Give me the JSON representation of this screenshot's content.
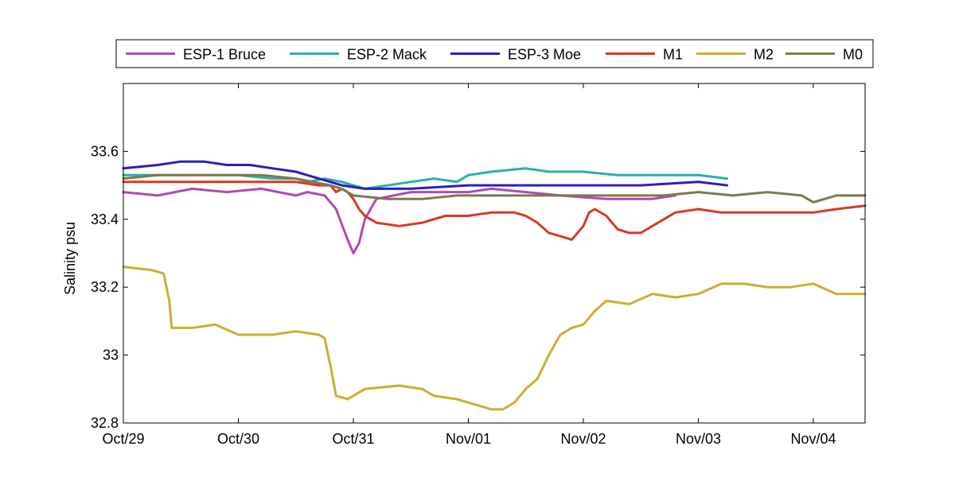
{
  "chart_data": {
    "type": "line",
    "xlabel": "",
    "ylabel": "Salinity psu",
    "xlim": [
      0,
      6.45
    ],
    "ylim": [
      32.8,
      33.8
    ],
    "x_tick_positions": [
      0,
      1,
      2,
      3,
      4,
      5,
      6
    ],
    "x_tick_labels": [
      "Oct/29",
      "Oct/30",
      "Oct/31",
      "Nov/01",
      "Nov/02",
      "Nov/03",
      "Nov/04"
    ],
    "y_tick_values": [
      32.8,
      33.0,
      33.2,
      33.4,
      33.6
    ],
    "y_tick_labels": [
      "32.8",
      "33",
      "33.2",
      "33.4",
      "33.6"
    ],
    "x_units": "days since Oct/29",
    "grid": false,
    "legend_position": "top",
    "series": [
      {
        "name": "ESP-1 Bruce",
        "color": "#b04ab6",
        "points": [
          [
            0,
            33.48
          ],
          [
            0.3,
            33.47
          ],
          [
            0.6,
            33.49
          ],
          [
            0.9,
            33.48
          ],
          [
            1.2,
            33.49
          ],
          [
            1.5,
            33.47
          ],
          [
            1.6,
            33.48
          ],
          [
            1.75,
            33.47
          ],
          [
            1.85,
            33.43
          ],
          [
            1.95,
            33.34
          ],
          [
            2.0,
            33.3
          ],
          [
            2.05,
            33.33
          ],
          [
            2.1,
            33.4
          ],
          [
            2.2,
            33.46
          ],
          [
            2.35,
            33.47
          ],
          [
            2.5,
            33.48
          ],
          [
            2.8,
            33.48
          ],
          [
            3.0,
            33.48
          ],
          [
            3.2,
            33.49
          ],
          [
            3.5,
            33.48
          ],
          [
            3.8,
            33.47
          ],
          [
            4.2,
            33.46
          ],
          [
            4.6,
            33.46
          ],
          [
            4.8,
            33.47
          ]
        ]
      },
      {
        "name": "ESP-2 Mack",
        "color": "#29b0a8",
        "points": [
          [
            0,
            33.53
          ],
          [
            0.5,
            33.53
          ],
          [
            1.0,
            33.53
          ],
          [
            1.3,
            33.52
          ],
          [
            1.5,
            33.52
          ],
          [
            1.6,
            33.51
          ],
          [
            1.75,
            33.52
          ],
          [
            1.9,
            33.51
          ],
          [
            2.1,
            33.49
          ],
          [
            2.3,
            33.5
          ],
          [
            2.5,
            33.51
          ],
          [
            2.7,
            33.52
          ],
          [
            2.9,
            33.51
          ],
          [
            3.0,
            33.53
          ],
          [
            3.2,
            33.54
          ],
          [
            3.5,
            33.55
          ],
          [
            3.7,
            33.54
          ],
          [
            4.0,
            33.54
          ],
          [
            4.3,
            33.53
          ],
          [
            4.6,
            33.53
          ],
          [
            5.0,
            33.53
          ],
          [
            5.25,
            33.52
          ]
        ]
      },
      {
        "name": "ESP-3 Moe",
        "color": "#2b1fbf",
        "points": [
          [
            0,
            33.55
          ],
          [
            0.3,
            33.56
          ],
          [
            0.5,
            33.57
          ],
          [
            0.7,
            33.57
          ],
          [
            0.9,
            33.56
          ],
          [
            1.1,
            33.56
          ],
          [
            1.3,
            33.55
          ],
          [
            1.5,
            33.54
          ],
          [
            1.7,
            33.52
          ],
          [
            1.9,
            33.5
          ],
          [
            2.1,
            33.49
          ],
          [
            2.5,
            33.49
          ],
          [
            3.0,
            33.5
          ],
          [
            3.5,
            33.5
          ],
          [
            4.0,
            33.5
          ],
          [
            4.5,
            33.5
          ],
          [
            5.0,
            33.51
          ],
          [
            5.25,
            33.5
          ]
        ]
      },
      {
        "name": "M1",
        "color": "#d83a20",
        "points": [
          [
            0,
            33.51
          ],
          [
            0.5,
            33.51
          ],
          [
            1.0,
            33.51
          ],
          [
            1.5,
            33.51
          ],
          [
            1.7,
            33.5
          ],
          [
            1.8,
            33.5
          ],
          [
            1.85,
            33.48
          ],
          [
            1.9,
            33.49
          ],
          [
            1.95,
            33.48
          ],
          [
            2.0,
            33.46
          ],
          [
            2.05,
            33.43
          ],
          [
            2.1,
            33.41
          ],
          [
            2.2,
            33.39
          ],
          [
            2.4,
            33.38
          ],
          [
            2.6,
            33.39
          ],
          [
            2.8,
            33.41
          ],
          [
            3.0,
            33.41
          ],
          [
            3.2,
            33.42
          ],
          [
            3.4,
            33.42
          ],
          [
            3.5,
            33.41
          ],
          [
            3.6,
            33.39
          ],
          [
            3.7,
            33.36
          ],
          [
            3.8,
            33.35
          ],
          [
            3.9,
            33.34
          ],
          [
            4.0,
            33.38
          ],
          [
            4.05,
            33.42
          ],
          [
            4.1,
            33.43
          ],
          [
            4.2,
            33.41
          ],
          [
            4.3,
            33.37
          ],
          [
            4.4,
            33.36
          ],
          [
            4.5,
            33.36
          ],
          [
            4.6,
            33.38
          ],
          [
            4.7,
            33.4
          ],
          [
            4.8,
            33.42
          ],
          [
            5.0,
            33.43
          ],
          [
            5.2,
            33.42
          ],
          [
            5.5,
            33.42
          ],
          [
            5.8,
            33.42
          ],
          [
            6.0,
            33.42
          ],
          [
            6.2,
            33.43
          ],
          [
            6.45,
            33.44
          ]
        ]
      },
      {
        "name": "M2",
        "color": "#c9b030",
        "points": [
          [
            0,
            33.26
          ],
          [
            0.25,
            33.25
          ],
          [
            0.35,
            33.24
          ],
          [
            0.4,
            33.16
          ],
          [
            0.42,
            33.08
          ],
          [
            0.6,
            33.08
          ],
          [
            0.8,
            33.09
          ],
          [
            1.0,
            33.06
          ],
          [
            1.3,
            33.06
          ],
          [
            1.5,
            33.07
          ],
          [
            1.7,
            33.06
          ],
          [
            1.75,
            33.05
          ],
          [
            1.8,
            32.97
          ],
          [
            1.85,
            32.88
          ],
          [
            1.95,
            32.87
          ],
          [
            2.1,
            32.9
          ],
          [
            2.4,
            32.91
          ],
          [
            2.6,
            32.9
          ],
          [
            2.7,
            32.88
          ],
          [
            2.9,
            32.87
          ],
          [
            3.1,
            32.85
          ],
          [
            3.2,
            32.84
          ],
          [
            3.3,
            32.84
          ],
          [
            3.4,
            32.86
          ],
          [
            3.5,
            32.9
          ],
          [
            3.6,
            32.93
          ],
          [
            3.7,
            33.0
          ],
          [
            3.8,
            33.06
          ],
          [
            3.9,
            33.08
          ],
          [
            4.0,
            33.09
          ],
          [
            4.1,
            33.13
          ],
          [
            4.2,
            33.16
          ],
          [
            4.4,
            33.15
          ],
          [
            4.6,
            33.18
          ],
          [
            4.8,
            33.17
          ],
          [
            5.0,
            33.18
          ],
          [
            5.2,
            33.21
          ],
          [
            5.4,
            33.21
          ],
          [
            5.6,
            33.2
          ],
          [
            5.8,
            33.2
          ],
          [
            6.0,
            33.21
          ],
          [
            6.2,
            33.18
          ],
          [
            6.45,
            33.18
          ]
        ]
      },
      {
        "name": "M0",
        "color": "#7c7a4c",
        "points": [
          [
            0,
            33.52
          ],
          [
            0.3,
            33.53
          ],
          [
            0.6,
            33.53
          ],
          [
            0.9,
            33.53
          ],
          [
            1.2,
            33.53
          ],
          [
            1.5,
            33.52
          ],
          [
            1.8,
            33.5
          ],
          [
            1.9,
            33.49
          ],
          [
            2.0,
            33.47
          ],
          [
            2.3,
            33.46
          ],
          [
            2.6,
            33.46
          ],
          [
            2.9,
            33.47
          ],
          [
            3.2,
            33.47
          ],
          [
            3.5,
            33.47
          ],
          [
            3.8,
            33.47
          ],
          [
            4.1,
            33.47
          ],
          [
            4.4,
            33.47
          ],
          [
            4.7,
            33.47
          ],
          [
            5.0,
            33.48
          ],
          [
            5.3,
            33.47
          ],
          [
            5.6,
            33.48
          ],
          [
            5.9,
            33.47
          ],
          [
            6.0,
            33.45
          ],
          [
            6.2,
            33.47
          ],
          [
            6.45,
            33.47
          ]
        ]
      }
    ]
  }
}
